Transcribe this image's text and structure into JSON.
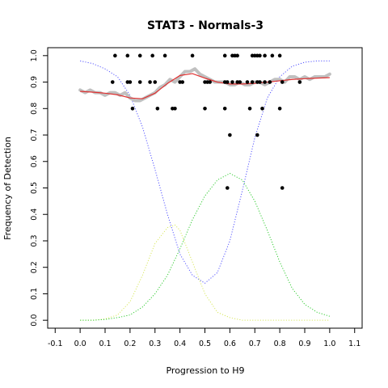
{
  "chart_data": {
    "type": "scatter",
    "title": "STAT3 - Normals-3",
    "xlabel": "Progression to H9",
    "ylabel": "Frequency of Detection",
    "xlim": [
      -0.13,
      1.13
    ],
    "ylim": [
      -0.03,
      1.03
    ],
    "x_ticks": [
      "-0.1",
      "0.0",
      "0.1",
      "0.2",
      "0.3",
      "0.4",
      "0.5",
      "0.6",
      "0.7",
      "0.8",
      "0.9",
      "1.0",
      "1.1"
    ],
    "y_ticks": [
      "0.0",
      "0.1",
      "0.2",
      "0.3",
      "0.4",
      "0.5",
      "0.6",
      "0.7",
      "0.8",
      "0.9",
      "1.0"
    ],
    "grid": false,
    "legend": "none",
    "series": [
      {
        "type": "scatter",
        "color": "#000000",
        "points": [
          [
            0.14,
            1.0
          ],
          [
            0.19,
            1.0
          ],
          [
            0.24,
            1.0
          ],
          [
            0.29,
            1.0
          ],
          [
            0.34,
            1.0
          ],
          [
            0.45,
            1.0
          ],
          [
            0.58,
            1.0
          ],
          [
            0.61,
            1.0
          ],
          [
            0.62,
            1.0
          ],
          [
            0.63,
            1.0
          ],
          [
            0.69,
            1.0
          ],
          [
            0.7,
            1.0
          ],
          [
            0.71,
            1.0
          ],
          [
            0.72,
            1.0
          ],
          [
            0.74,
            1.0
          ],
          [
            0.77,
            1.0
          ],
          [
            0.8,
            1.0
          ],
          [
            0.13,
            0.9
          ],
          [
            0.19,
            0.9
          ],
          [
            0.2,
            0.9
          ],
          [
            0.24,
            0.9
          ],
          [
            0.28,
            0.9
          ],
          [
            0.3,
            0.9
          ],
          [
            0.4,
            0.9
          ],
          [
            0.41,
            0.9
          ],
          [
            0.5,
            0.9
          ],
          [
            0.51,
            0.9
          ],
          [
            0.52,
            0.9
          ],
          [
            0.58,
            0.9
          ],
          [
            0.59,
            0.9
          ],
          [
            0.61,
            0.9
          ],
          [
            0.63,
            0.9
          ],
          [
            0.64,
            0.9
          ],
          [
            0.67,
            0.9
          ],
          [
            0.69,
            0.9
          ],
          [
            0.71,
            0.9
          ],
          [
            0.72,
            0.9
          ],
          [
            0.74,
            0.9
          ],
          [
            0.76,
            0.9
          ],
          [
            0.81,
            0.9
          ],
          [
            0.88,
            0.9
          ],
          [
            0.21,
            0.8
          ],
          [
            0.31,
            0.8
          ],
          [
            0.37,
            0.8
          ],
          [
            0.38,
            0.8
          ],
          [
            0.5,
            0.8
          ],
          [
            0.58,
            0.8
          ],
          [
            0.68,
            0.8
          ],
          [
            0.73,
            0.8
          ],
          [
            0.8,
            0.8
          ],
          [
            0.6,
            0.7
          ],
          [
            0.71,
            0.7
          ],
          [
            0.59,
            0.5
          ],
          [
            0.81,
            0.5
          ]
        ]
      },
      {
        "type": "line",
        "color": "#c0c0c0",
        "x": [
          0.0,
          0.02,
          0.04,
          0.06,
          0.08,
          0.1,
          0.12,
          0.14,
          0.16,
          0.18,
          0.2,
          0.22,
          0.24,
          0.26,
          0.28,
          0.3,
          0.32,
          0.34,
          0.36,
          0.38,
          0.4,
          0.42,
          0.44,
          0.46,
          0.48,
          0.5,
          0.52,
          0.54,
          0.56,
          0.58,
          0.6,
          0.62,
          0.64,
          0.66,
          0.68,
          0.7,
          0.72,
          0.74,
          0.76,
          0.78,
          0.8,
          0.82,
          0.84,
          0.86,
          0.88,
          0.9,
          0.92,
          0.94,
          0.96,
          0.98,
          1.0
        ],
        "y": [
          0.87,
          0.86,
          0.87,
          0.86,
          0.86,
          0.85,
          0.86,
          0.86,
          0.85,
          0.86,
          0.84,
          0.83,
          0.83,
          0.84,
          0.85,
          0.86,
          0.88,
          0.89,
          0.91,
          0.9,
          0.92,
          0.94,
          0.94,
          0.95,
          0.93,
          0.92,
          0.91,
          0.9,
          0.9,
          0.9,
          0.89,
          0.89,
          0.9,
          0.89,
          0.89,
          0.9,
          0.9,
          0.89,
          0.9,
          0.91,
          0.91,
          0.9,
          0.92,
          0.92,
          0.91,
          0.92,
          0.91,
          0.92,
          0.92,
          0.92,
          0.93
        ]
      },
      {
        "type": "line",
        "color": "#e03030",
        "x": [
          0.0,
          0.05,
          0.1,
          0.15,
          0.2,
          0.25,
          0.3,
          0.35,
          0.4,
          0.45,
          0.5,
          0.55,
          0.6,
          0.65,
          0.7,
          0.75,
          0.8,
          0.85,
          0.9,
          0.95,
          1.0
        ],
        "y": [
          0.865,
          0.862,
          0.858,
          0.852,
          0.84,
          0.837,
          0.858,
          0.895,
          0.925,
          0.932,
          0.915,
          0.9,
          0.893,
          0.893,
          0.895,
          0.9,
          0.905,
          0.91,
          0.913,
          0.915,
          0.917
        ]
      },
      {
        "type": "line",
        "style": "dotted",
        "color": "#5555ff",
        "x": [
          0.0,
          0.05,
          0.1,
          0.15,
          0.2,
          0.25,
          0.3,
          0.35,
          0.4,
          0.45,
          0.5,
          0.55,
          0.6,
          0.65,
          0.7,
          0.75,
          0.8,
          0.85,
          0.9,
          0.95,
          1.0
        ],
        "y": [
          0.98,
          0.97,
          0.95,
          0.92,
          0.85,
          0.73,
          0.57,
          0.4,
          0.25,
          0.17,
          0.14,
          0.18,
          0.3,
          0.49,
          0.69,
          0.84,
          0.92,
          0.96,
          0.975,
          0.98,
          0.98
        ]
      },
      {
        "type": "line",
        "style": "dotted",
        "color": "#d8e860",
        "x": [
          0.0,
          0.05,
          0.1,
          0.15,
          0.2,
          0.25,
          0.3,
          0.35,
          0.38,
          0.4,
          0.45,
          0.5,
          0.55,
          0.6,
          0.65,
          0.7,
          0.75,
          0.8,
          0.85,
          0.9,
          0.95,
          1.0
        ],
        "y": [
          0.0,
          0.0,
          0.005,
          0.02,
          0.07,
          0.17,
          0.29,
          0.35,
          0.36,
          0.34,
          0.22,
          0.1,
          0.03,
          0.01,
          0.0,
          0.0,
          0.0,
          0.0,
          0.0,
          0.0,
          0.0,
          0.0
        ]
      },
      {
        "type": "line",
        "style": "dotted",
        "color": "#33cc33",
        "x": [
          0.0,
          0.05,
          0.1,
          0.15,
          0.2,
          0.25,
          0.3,
          0.35,
          0.4,
          0.45,
          0.5,
          0.55,
          0.6,
          0.65,
          0.7,
          0.75,
          0.8,
          0.85,
          0.9,
          0.95,
          1.0
        ],
        "y": [
          0.0,
          0.0,
          0.003,
          0.01,
          0.02,
          0.05,
          0.1,
          0.17,
          0.27,
          0.38,
          0.47,
          0.53,
          0.555,
          0.53,
          0.45,
          0.34,
          0.22,
          0.12,
          0.06,
          0.03,
          0.015
        ]
      }
    ]
  }
}
